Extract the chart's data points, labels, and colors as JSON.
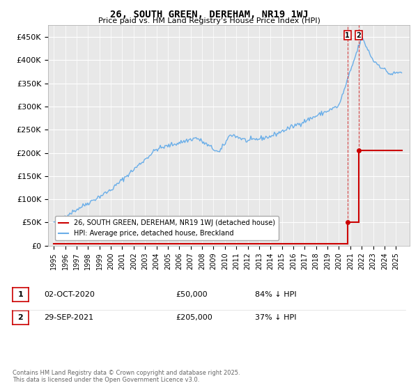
{
  "title": "26, SOUTH GREEN, DEREHAM, NR19 1WJ",
  "subtitle": "Price paid vs. HM Land Registry's House Price Index (HPI)",
  "ylim": [
    0,
    475000
  ],
  "yticks": [
    0,
    50000,
    100000,
    150000,
    200000,
    250000,
    300000,
    350000,
    400000,
    450000
  ],
  "ytick_labels": [
    "£0",
    "£50K",
    "£100K",
    "£150K",
    "£200K",
    "£250K",
    "£300K",
    "£350K",
    "£400K",
    "£450K"
  ],
  "hpi_color": "#6aaee8",
  "price_color": "#cc0000",
  "background_color": "#ffffff",
  "plot_bg_color": "#e8e8e8",
  "legend_label_red": "26, SOUTH GREEN, DEREHAM, NR19 1WJ (detached house)",
  "legend_label_blue": "HPI: Average price, detached house, Breckland",
  "annotation1_date": "02-OCT-2020",
  "annotation1_price": "£50,000",
  "annotation1_pct": "84% ↓ HPI",
  "annotation2_date": "29-SEP-2021",
  "annotation2_price": "£205,000",
  "annotation2_pct": "37% ↓ HPI",
  "footer": "Contains HM Land Registry data © Crown copyright and database right 2025.\nThis data is licensed under the Open Government Licence v3.0.",
  "sale1_x": 2020.75,
  "sale1_y": 50000,
  "sale2_x": 2021.74,
  "sale2_y": 205000,
  "vline_color": "#cc0000",
  "ann_box_color": "#cc0000",
  "xlim_left": 1994.5,
  "xlim_right": 2026.2
}
